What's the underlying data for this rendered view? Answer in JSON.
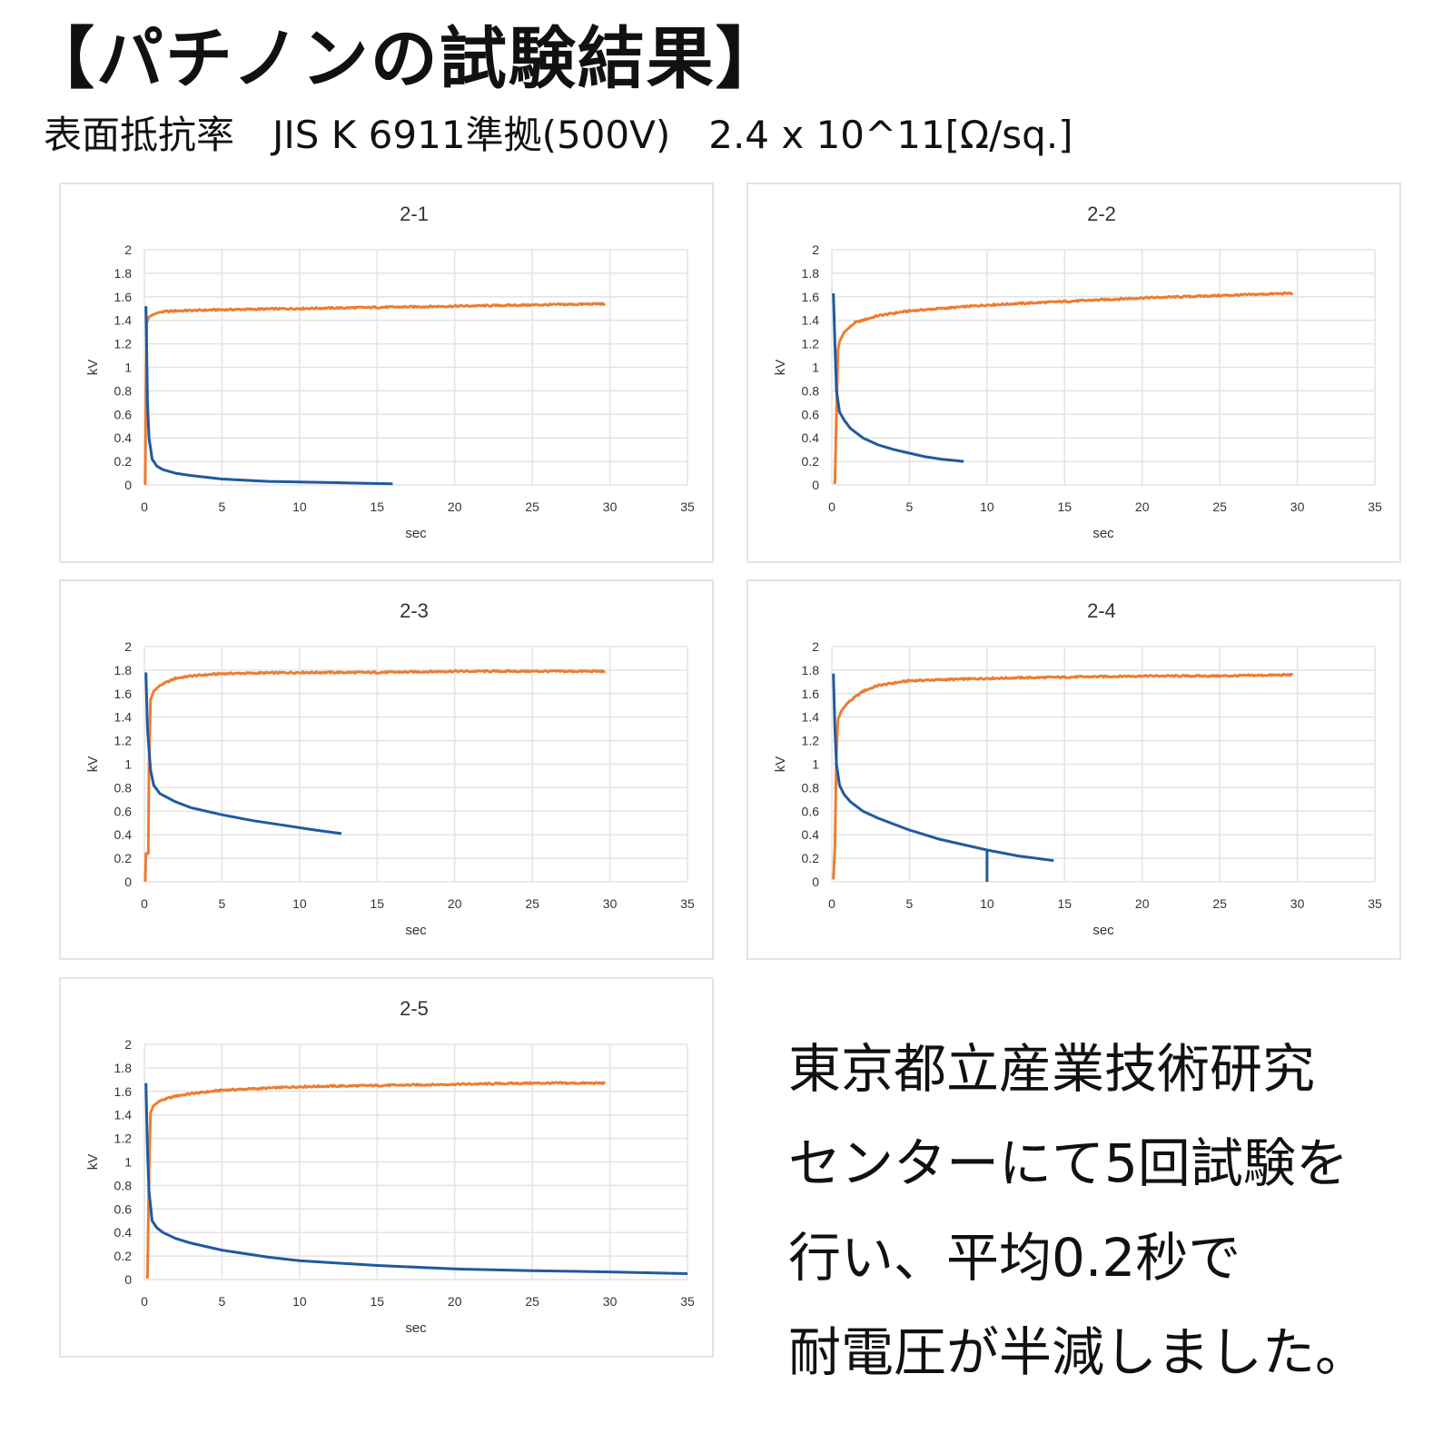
{
  "header": {
    "title": "【パチノンの試験結果】",
    "subtitle": "表面抵抗率　JIS K 6911準拠(500V)　2.4 x 10^11[Ω/sq.]"
  },
  "colors": {
    "charged": "#ed7d31",
    "decay": "#1f5aa0",
    "grid": "#e3e3e3",
    "panel_border": "#e4e4e4"
  },
  "note": {
    "lines": [
      "東京都立産業技術研究",
      "センターにて5回試験を",
      "行い、平均0.2秒で",
      "耐電圧が半減しました。"
    ]
  },
  "chart_data": [
    {
      "type": "line",
      "title": "2-1",
      "xlabel": "sec",
      "ylabel": "kV",
      "xlim": [
        0,
        35
      ],
      "ylim": [
        0,
        2
      ],
      "xticks": [
        "0",
        "5",
        "10",
        "15",
        "20",
        "25",
        "30",
        "35"
      ],
      "yticks": [
        "0",
        "0.2",
        "0.4",
        "0.6",
        "0.8",
        "1",
        "1.2",
        "1.4",
        "1.6",
        "1.8",
        "2"
      ],
      "grid": true,
      "legend": "none",
      "series": [
        {
          "name": "orange",
          "x": [
            0.05,
            0.1,
            0.15,
            0.3,
            0.6,
            1,
            2,
            5,
            10,
            15,
            20,
            25,
            29.7
          ],
          "y": [
            0,
            0.8,
            1.38,
            1.43,
            1.45,
            1.47,
            1.48,
            1.49,
            1.5,
            1.51,
            1.52,
            1.53,
            1.54
          ]
        },
        {
          "name": "blue",
          "x": [
            0.1,
            0.15,
            0.2,
            0.3,
            0.5,
            0.8,
            1.2,
            2,
            3,
            5,
            8,
            10,
            12,
            16
          ],
          "y": [
            1.52,
            1.1,
            0.7,
            0.4,
            0.22,
            0.16,
            0.13,
            0.1,
            0.08,
            0.05,
            0.03,
            0.025,
            0.02,
            0.01
          ]
        }
      ]
    },
    {
      "type": "line",
      "title": "2-2",
      "xlabel": "sec",
      "ylabel": "kV",
      "xlim": [
        0,
        35
      ],
      "ylim": [
        0,
        2
      ],
      "xticks": [
        "0",
        "5",
        "10",
        "15",
        "20",
        "25",
        "30",
        "35"
      ],
      "yticks": [
        "0",
        "0.2",
        "0.4",
        "0.6",
        "0.8",
        "1",
        "1.2",
        "1.4",
        "1.6",
        "1.8",
        "2"
      ],
      "grid": true,
      "legend": "none",
      "series": [
        {
          "name": "orange",
          "x": [
            0.1,
            0.2,
            0.3,
            0.4,
            0.5,
            0.8,
            1.5,
            3,
            5,
            10,
            15,
            20,
            25,
            29.7
          ],
          "y": [
            0.02,
            0.02,
            0.6,
            1.15,
            1.22,
            1.3,
            1.38,
            1.44,
            1.48,
            1.53,
            1.56,
            1.59,
            1.61,
            1.63
          ]
        },
        {
          "name": "blue",
          "x": [
            0.1,
            0.2,
            0.3,
            0.5,
            0.8,
            1.2,
            2,
            3,
            4,
            5,
            6,
            7,
            8.5
          ],
          "y": [
            1.63,
            1.2,
            0.8,
            0.62,
            0.55,
            0.48,
            0.4,
            0.34,
            0.3,
            0.27,
            0.24,
            0.22,
            0.2
          ]
        }
      ]
    },
    {
      "type": "line",
      "title": "2-3",
      "xlabel": "sec",
      "ylabel": "kV",
      "xlim": [
        0,
        35
      ],
      "ylim": [
        0,
        2
      ],
      "xticks": [
        "0",
        "5",
        "10",
        "15",
        "20",
        "25",
        "30",
        "35"
      ],
      "yticks": [
        "0",
        "0.2",
        "0.4",
        "0.6",
        "0.8",
        "1",
        "1.2",
        "1.4",
        "1.6",
        "1.8",
        "2"
      ],
      "grid": true,
      "legend": "none",
      "series": [
        {
          "name": "orange",
          "x": [
            0.05,
            0.1,
            0.25,
            0.3,
            0.4,
            0.6,
            1,
            2,
            3,
            5,
            10,
            15,
            20,
            25,
            29.7
          ],
          "y": [
            0,
            0.24,
            0.24,
            1.0,
            1.55,
            1.62,
            1.67,
            1.73,
            1.75,
            1.77,
            1.78,
            1.78,
            1.79,
            1.79,
            1.79
          ]
        },
        {
          "name": "blue",
          "x": [
            0.1,
            0.2,
            0.4,
            0.6,
            1,
            2,
            3,
            5,
            7,
            9,
            11,
            12.7
          ],
          "y": [
            1.78,
            1.3,
            0.95,
            0.82,
            0.75,
            0.68,
            0.63,
            0.57,
            0.52,
            0.48,
            0.44,
            0.41
          ]
        }
      ]
    },
    {
      "type": "line",
      "title": "2-4",
      "xlabel": "sec",
      "ylabel": "kV",
      "xlim": [
        0,
        35
      ],
      "ylim": [
        0,
        2
      ],
      "xticks": [
        "0",
        "5",
        "10",
        "15",
        "20",
        "25",
        "30",
        "35"
      ],
      "yticks": [
        "0",
        "0.2",
        "0.4",
        "0.6",
        "0.8",
        "1",
        "1.2",
        "1.4",
        "1.6",
        "1.8",
        "2"
      ],
      "grid": true,
      "legend": "none",
      "series": [
        {
          "name": "orange",
          "x": [
            0.1,
            0.2,
            0.3,
            0.4,
            0.6,
            1,
            2,
            3,
            5,
            10,
            15,
            20,
            25,
            29.7
          ],
          "y": [
            0.02,
            0.3,
            1.1,
            1.38,
            1.45,
            1.52,
            1.62,
            1.67,
            1.71,
            1.73,
            1.74,
            1.75,
            1.75,
            1.76
          ]
        },
        {
          "name": "blue",
          "x": [
            0.1,
            0.2,
            0.3,
            0.5,
            0.8,
            1.2,
            2,
            3,
            5,
            7,
            10,
            12,
            14.3
          ],
          "y": [
            1.77,
            1.3,
            1.0,
            0.82,
            0.74,
            0.68,
            0.6,
            0.54,
            0.44,
            0.36,
            0.27,
            0.22,
            0.18
          ]
        },
        {
          "name": "blue-spike",
          "x": [
            10,
            10
          ],
          "y": [
            0.27,
            0
          ]
        }
      ]
    },
    {
      "type": "line",
      "title": "2-5",
      "xlabel": "sec",
      "ylabel": "kV",
      "xlim": [
        0,
        35
      ],
      "ylim": [
        0,
        2
      ],
      "xticks": [
        "0",
        "5",
        "10",
        "15",
        "20",
        "25",
        "30",
        "35"
      ],
      "yticks": [
        "0",
        "0.2",
        "0.4",
        "0.6",
        "0.8",
        "1",
        "1.2",
        "1.4",
        "1.6",
        "1.8",
        "2"
      ],
      "grid": true,
      "legend": "none",
      "series": [
        {
          "name": "orange",
          "x": [
            0.1,
            0.2,
            0.3,
            0.4,
            0.6,
            1,
            2,
            3,
            5,
            10,
            15,
            20,
            25,
            29.7
          ],
          "y": [
            0.02,
            0.02,
            0.9,
            1.42,
            1.48,
            1.52,
            1.56,
            1.58,
            1.61,
            1.64,
            1.65,
            1.66,
            1.67,
            1.67
          ]
        },
        {
          "name": "blue",
          "x": [
            0.1,
            0.2,
            0.3,
            0.5,
            0.8,
            1.2,
            2,
            3,
            5,
            8,
            10,
            15,
            20,
            25,
            30,
            35
          ],
          "y": [
            1.67,
            1.1,
            0.75,
            0.5,
            0.44,
            0.4,
            0.35,
            0.31,
            0.25,
            0.19,
            0.16,
            0.12,
            0.09,
            0.075,
            0.065,
            0.05
          ]
        }
      ]
    }
  ]
}
